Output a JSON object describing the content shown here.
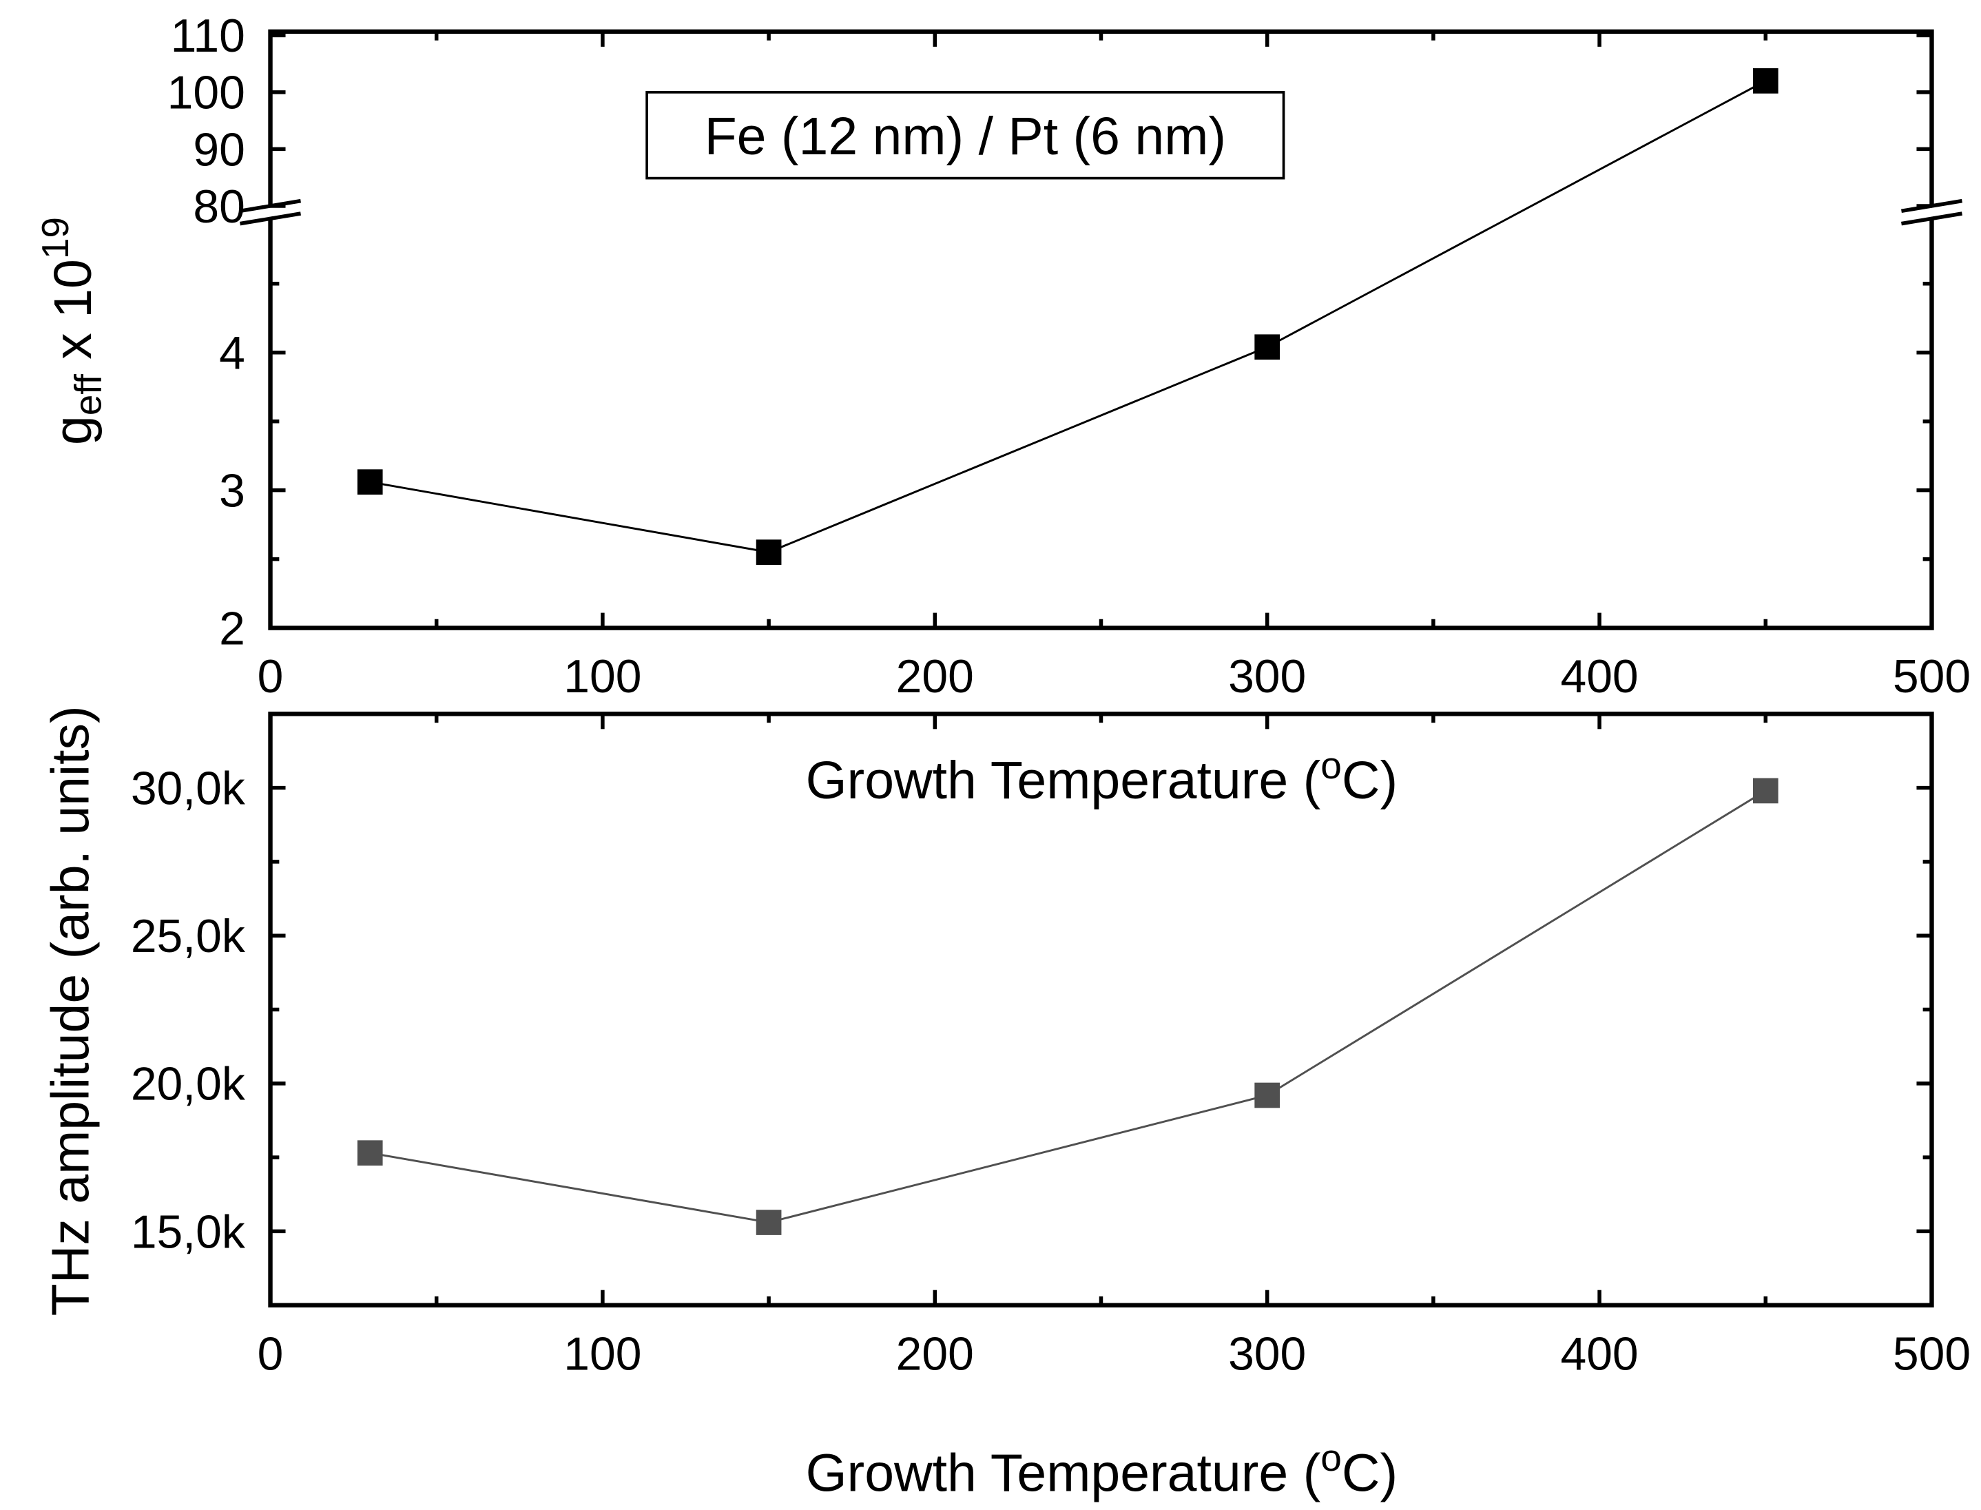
{
  "chart_data": [
    {
      "type": "line",
      "panel": "top",
      "title": "",
      "legend": "Fe (12 nm) / Pt (6 nm)",
      "legend_position": "top-left",
      "xlabel": "Growth Temperature",
      "xlabel_unit_prefix": "(",
      "xlabel_unit_sup": "o",
      "xlabel_unit_suffix": "C)",
      "ylabel_main": "g",
      "ylabel_sub": "eff",
      "ylabel_rest": " x 10",
      "ylabel_sup": "19",
      "xlim": [
        0,
        500
      ],
      "xticks": [
        "0",
        "100",
        "200",
        "300",
        "400",
        "500"
      ],
      "axis_break": {
        "lower_range": [
          2,
          5
        ],
        "upper_range": [
          80,
          110
        ]
      },
      "yticks_lower": [
        "2",
        "3",
        "4"
      ],
      "yticks_upper": [
        "80",
        "90",
        "100",
        "110"
      ],
      "series": [
        {
          "name": "Fe (12 nm) / Pt (6 nm)",
          "color": "#000000",
          "marker": "square",
          "x": [
            30,
            150,
            300,
            450
          ],
          "y": [
            3.06,
            2.55,
            4.04,
            102
          ]
        }
      ]
    },
    {
      "type": "line",
      "panel": "bottom",
      "title": "",
      "xlabel": "Growth Temperature",
      "xlabel_unit_prefix": "(",
      "xlabel_unit_sup": "o",
      "xlabel_unit_suffix": "C)",
      "ylabel": "THz amplitude (arb. units)",
      "xlim": [
        0,
        500
      ],
      "ylim": [
        12500,
        32500
      ],
      "xticks": [
        "0",
        "100",
        "200",
        "300",
        "400",
        "500"
      ],
      "yticks": [
        "15,0k",
        "20,0k",
        "25,0k",
        "30,0k"
      ],
      "series": [
        {
          "name": "THz amplitude",
          "color": "#505050",
          "marker": "square",
          "x": [
            30,
            150,
            300,
            450
          ],
          "y": [
            17650,
            15300,
            19600,
            29900
          ]
        }
      ]
    }
  ]
}
